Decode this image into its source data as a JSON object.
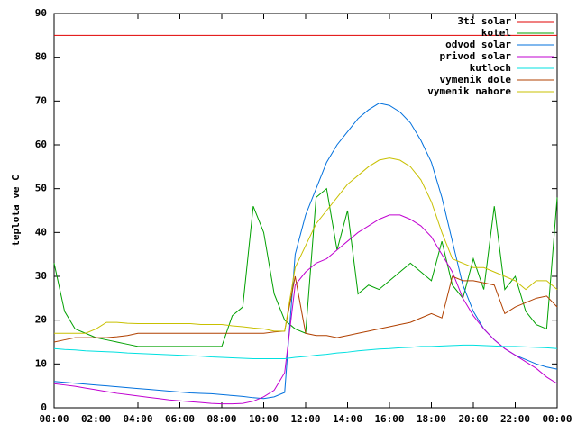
{
  "chart_data": {
    "type": "line",
    "ylabel": "teplota ve C",
    "x": [
      0,
      0.5,
      1,
      1.5,
      2,
      2.5,
      3,
      3.5,
      4,
      4.5,
      5,
      5.5,
      6,
      6.5,
      7,
      7.5,
      8,
      8.5,
      9,
      9.5,
      10,
      10.5,
      11,
      11.5,
      12,
      12.5,
      13,
      13.5,
      14,
      14.5,
      15,
      15.5,
      16,
      16.5,
      17,
      17.5,
      18,
      18.5,
      19,
      19.5,
      20,
      20.5,
      21,
      21.5,
      22,
      22.5,
      23,
      23.5,
      24
    ],
    "xlim": [
      0,
      24
    ],
    "xticks": [
      {
        "value": 0,
        "label": "00:00"
      },
      {
        "value": 2,
        "label": "02:00"
      },
      {
        "value": 4,
        "label": "04:00"
      },
      {
        "value": 6,
        "label": "06:00"
      },
      {
        "value": 8,
        "label": "08:00"
      },
      {
        "value": 10,
        "label": "10:00"
      },
      {
        "value": 12,
        "label": "12:00"
      },
      {
        "value": 14,
        "label": "14:00"
      },
      {
        "value": 16,
        "label": "16:00"
      },
      {
        "value": 18,
        "label": "18:00"
      },
      {
        "value": 20,
        "label": "20:00"
      },
      {
        "value": 22,
        "label": "22:00"
      },
      {
        "value": 24,
        "label": "00:00"
      }
    ],
    "ylim": [
      0,
      90
    ],
    "yticks": [
      0,
      10,
      20,
      30,
      40,
      50,
      60,
      70,
      80,
      90
    ],
    "legend": "upper right",
    "series": [
      {
        "name": "3ti solar",
        "color": "#e00000",
        "values": [
          85,
          85,
          85,
          85,
          85,
          85,
          85,
          85,
          85,
          85,
          85,
          85,
          85,
          85,
          85,
          85,
          85,
          85,
          85,
          85,
          85,
          85,
          85,
          85,
          85,
          85,
          85,
          85,
          85,
          85,
          85,
          85,
          85,
          85,
          85,
          85,
          85,
          85,
          85,
          85,
          85,
          85,
          85,
          85,
          85,
          85,
          85,
          85,
          85
        ]
      },
      {
        "name": "kotel",
        "color": "#00a000",
        "values": [
          33,
          22,
          18,
          17,
          16,
          15.5,
          15,
          14.5,
          14,
          14,
          14,
          14,
          14,
          14,
          14,
          14,
          14,
          21,
          23,
          46,
          40,
          26,
          20,
          18,
          17,
          48,
          50,
          36,
          45,
          26,
          28,
          27,
          29,
          31,
          33,
          31,
          29,
          38,
          28,
          25,
          34,
          27,
          46,
          27,
          30,
          22,
          19,
          18,
          48
        ]
      },
      {
        "name": "odvod solar",
        "color": "#0070dd",
        "values": [
          6,
          5.8,
          5.6,
          5.4,
          5.2,
          5,
          4.8,
          4.6,
          4.4,
          4.2,
          4,
          3.8,
          3.6,
          3.4,
          3.3,
          3.2,
          3,
          2.8,
          2.6,
          2.3,
          2.1,
          2.5,
          3.5,
          35,
          44,
          50,
          56,
          60,
          63,
          66,
          68,
          69.5,
          69,
          67.5,
          65,
          61,
          56,
          48,
          38,
          28,
          22,
          18,
          15.5,
          13.5,
          12,
          11,
          10,
          9.3,
          8.8
        ]
      },
      {
        "name": "privod solar",
        "color": "#c000d0",
        "values": [
          5.5,
          5.2,
          4.9,
          4.5,
          4.1,
          3.7,
          3.3,
          3,
          2.7,
          2.4,
          2.1,
          1.8,
          1.6,
          1.4,
          1.2,
          1,
          0.9,
          0.9,
          1,
          1.5,
          2.5,
          4,
          8,
          28,
          31,
          33,
          34,
          36,
          38,
          40,
          41.5,
          43,
          44,
          44,
          43,
          41.5,
          39,
          35,
          31,
          25,
          21,
          18,
          15.5,
          13.5,
          12,
          10.5,
          9,
          7,
          5.5
        ]
      },
      {
        "name": "kutloch",
        "color": "#00e0e0",
        "values": [
          13.5,
          13.3,
          13.2,
          13,
          12.9,
          12.8,
          12.7,
          12.5,
          12.4,
          12.3,
          12.2,
          12.1,
          12,
          11.9,
          11.8,
          11.6,
          11.5,
          11.4,
          11.3,
          11.2,
          11.2,
          11.2,
          11.2,
          11.5,
          11.7,
          12,
          12.2,
          12.5,
          12.7,
          13,
          13.2,
          13.4,
          13.5,
          13.7,
          13.8,
          14,
          14,
          14.1,
          14.2,
          14.3,
          14.3,
          14.2,
          14.1,
          14,
          14,
          13.9,
          13.8,
          13.7,
          13.5
        ]
      },
      {
        "name": "vymenik dole",
        "color": "#b04000",
        "values": [
          15,
          15.5,
          16,
          16,
          16,
          16,
          16.2,
          16.5,
          17,
          17,
          17,
          17,
          17,
          17,
          17,
          17,
          17,
          17,
          17,
          17,
          17,
          17.3,
          17.5,
          30,
          17,
          16.5,
          16.5,
          16,
          16.5,
          17,
          17.5,
          18,
          18.5,
          19,
          19.5,
          20.5,
          21.5,
          20.5,
          30,
          29,
          29,
          28.5,
          28,
          21.5,
          23,
          24,
          25,
          25.5,
          23
        ]
      },
      {
        "name": "vymenik nahore",
        "color": "#c8c000",
        "values": [
          17,
          17,
          17,
          17,
          18,
          19.5,
          19.5,
          19.3,
          19.2,
          19.2,
          19.2,
          19.2,
          19.2,
          19.2,
          19,
          19,
          19,
          18.7,
          18.5,
          18.2,
          18,
          17.5,
          17.5,
          32,
          37,
          42,
          45,
          48,
          51,
          53,
          55,
          56.5,
          57,
          56.5,
          55,
          52,
          47,
          40,
          34,
          33,
          32,
          32,
          31,
          30,
          29,
          27,
          29,
          29,
          27
        ]
      }
    ]
  }
}
